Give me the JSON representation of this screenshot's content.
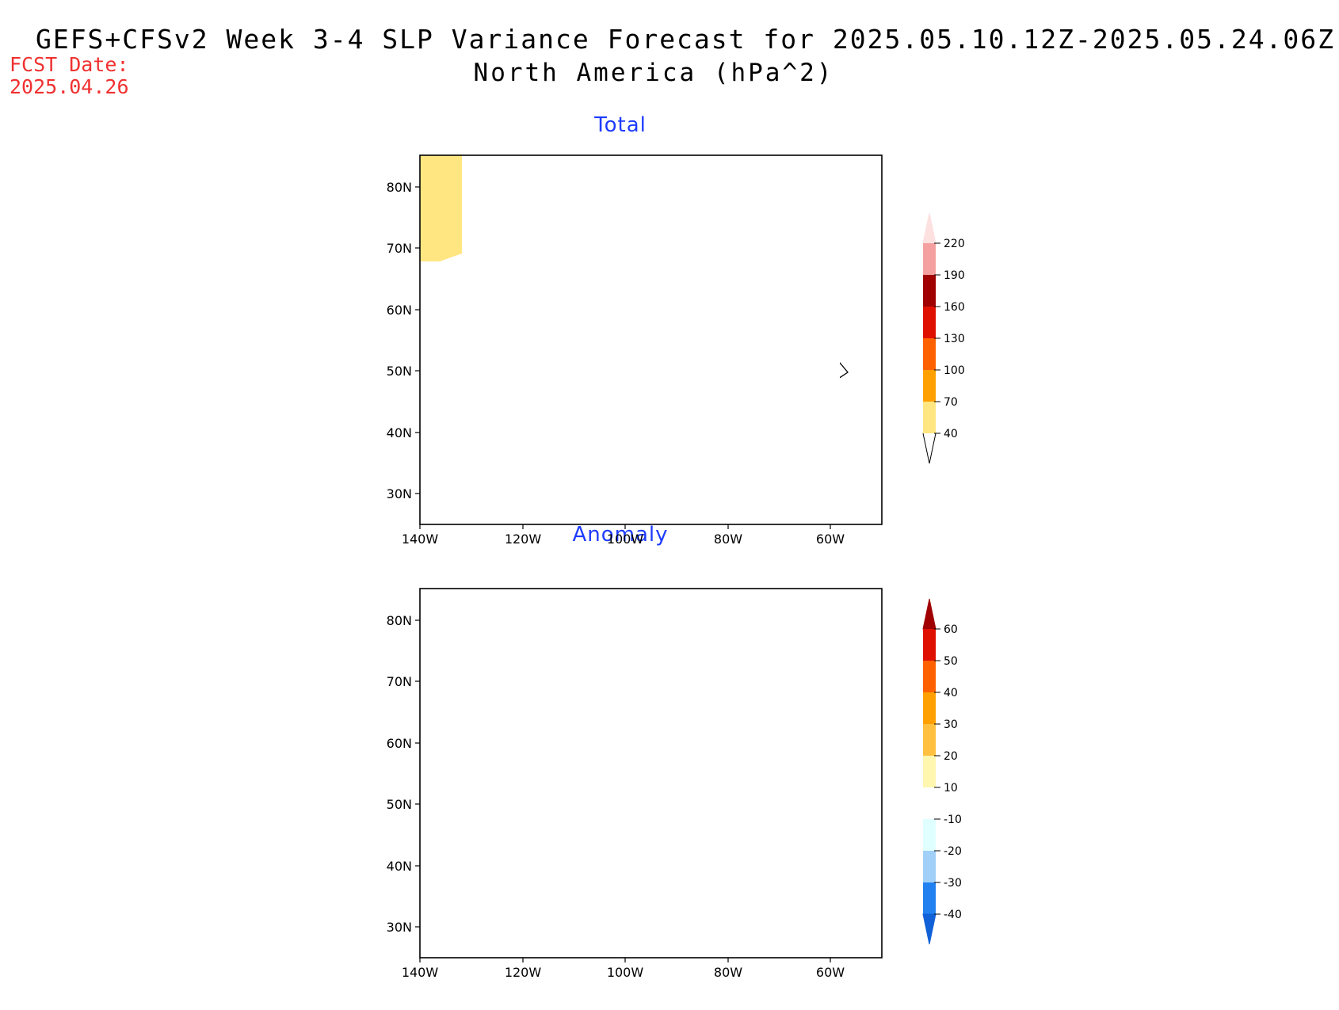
{
  "header": {
    "title": "GEFS+CFSv2 Week 3-4 SLP Variance Forecast for 2025.05.10.12Z-2025.05.24.06Z",
    "subtitle": "North America (hPa^2)",
    "fcst_label": "FCST Date:",
    "fcst_date": "2025.04.26"
  },
  "panels": [
    {
      "title": "Total",
      "lat_ticks": [
        "80N",
        "70N",
        "60N",
        "50N",
        "40N",
        "30N"
      ],
      "lon_ticks": [
        "140W",
        "120W",
        "100W",
        "80W",
        "60W"
      ],
      "colorbar": {
        "levels": [
          "220",
          "190",
          "160",
          "130",
          "100",
          "70",
          "40"
        ],
        "colors": [
          "#fde0e0",
          "#f4a0a0",
          "#a00000",
          "#e01000",
          "#ff6000",
          "#ffa000",
          "#ffe680"
        ]
      },
      "shaded_color": "#ffe680"
    },
    {
      "title": "Anomaly",
      "lat_ticks": [
        "80N",
        "70N",
        "60N",
        "50N",
        "40N",
        "30N"
      ],
      "lon_ticks": [
        "140W",
        "120W",
        "100W",
        "80W",
        "60W"
      ],
      "colorbar": {
        "levels": [
          "60",
          "50",
          "40",
          "30",
          "20",
          "10",
          "-10",
          "-20",
          "-30",
          "-40"
        ],
        "colors": [
          "#a00000",
          "#e01000",
          "#ff6000",
          "#ffa000",
          "#ffc040",
          "#fff6b0",
          "#ffffff",
          "#e0ffff",
          "#a0d0f8",
          "#2080f0",
          "#1060d8"
        ]
      },
      "neg_color": "#e0ffff",
      "pos_color": "#fff6b0"
    }
  ]
}
